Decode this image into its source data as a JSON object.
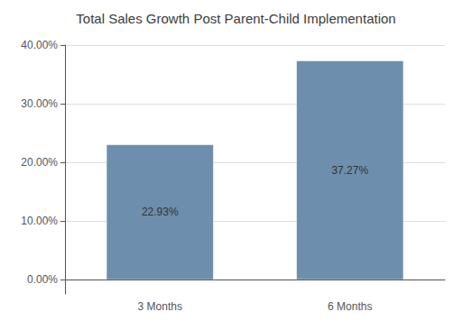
{
  "chart_data": {
    "type": "bar",
    "title": "Total Sales Growth Post Parent-Child Implementation",
    "categories": [
      "3 Months",
      "6 Months"
    ],
    "values": [
      22.93,
      37.27
    ],
    "value_labels": [
      "22.93%",
      "37.27%"
    ],
    "data_labels": true,
    "color": "#6d8fad",
    "ylim": [
      -2.5,
      40
    ],
    "yticks": [
      {
        "value": 0,
        "label": "0.00%"
      },
      {
        "value": 10,
        "label": "10.00%"
      },
      {
        "value": 20,
        "label": "20.00%"
      },
      {
        "value": 30,
        "label": "30.00%"
      },
      {
        "value": 40,
        "label": "40.00%"
      }
    ],
    "grid": true
  }
}
